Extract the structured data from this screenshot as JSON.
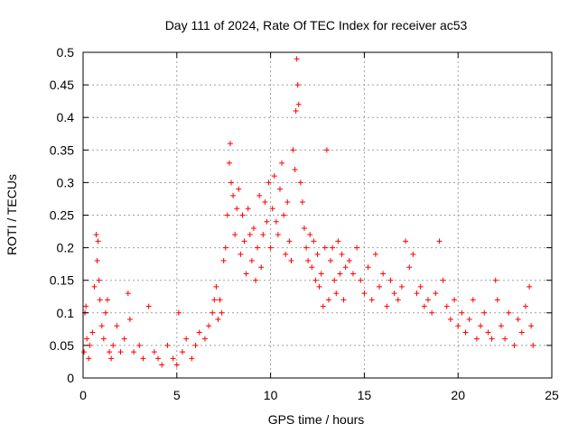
{
  "chart_data": {
    "type": "scatter",
    "title": "Day 111 of 2024, Rate Of TEC Index for receiver ac53",
    "xlabel": "GPS time / hours",
    "ylabel": "ROTI / TECUs",
    "xlim": [
      0,
      25
    ],
    "ylim": [
      0,
      0.5
    ],
    "xticks": [
      0,
      5,
      10,
      15,
      20,
      25
    ],
    "xtick_labels": [
      "0",
      "5",
      "10",
      "15",
      "20",
      "25"
    ],
    "yticks": [
      0,
      0.05,
      0.1,
      0.15,
      0.2,
      0.25,
      0.3,
      0.35,
      0.4,
      0.45,
      0.5
    ],
    "ytick_labels": [
      "0",
      "0.05",
      "0.1",
      "0.15",
      "0.2",
      "0.25",
      "0.3",
      "0.35",
      "0.4",
      "0.45",
      "0.5"
    ],
    "grid": true,
    "marker": "+",
    "color": "#ff0000",
    "series": [
      {
        "x": [
          0.05,
          0.1,
          0.15,
          0.2,
          0.3,
          0.35,
          0.5,
          0.6,
          0.7,
          0.75,
          0.8,
          0.85,
          0.9,
          1.0,
          1.1,
          1.2,
          1.3,
          1.4,
          1.5,
          1.6,
          1.8,
          2.0,
          2.2,
          2.4,
          2.5,
          2.7,
          3.0,
          3.2,
          3.5,
          3.8,
          4.0,
          4.2,
          4.5,
          4.8,
          5.0,
          5.1,
          5.3,
          5.5,
          5.8,
          6.0,
          6.2,
          6.5,
          6.7,
          6.9,
          7.0,
          7.1,
          7.2,
          7.3,
          7.4,
          7.5,
          7.6,
          7.7,
          7.8,
          7.85,
          7.9,
          8.0,
          8.1,
          8.2,
          8.3,
          8.4,
          8.5,
          8.6,
          8.7,
          8.8,
          8.9,
          9.0,
          9.1,
          9.2,
          9.3,
          9.4,
          9.5,
          9.6,
          9.7,
          9.8,
          9.9,
          10.0,
          10.1,
          10.2,
          10.3,
          10.4,
          10.5,
          10.6,
          10.7,
          10.8,
          10.9,
          11.0,
          11.1,
          11.2,
          11.3,
          11.35,
          11.4,
          11.45,
          11.5,
          11.6,
          11.7,
          11.8,
          11.9,
          12.0,
          12.1,
          12.2,
          12.3,
          12.4,
          12.5,
          12.6,
          12.7,
          12.8,
          12.9,
          13.0,
          13.1,
          13.2,
          13.3,
          13.4,
          13.5,
          13.6,
          13.7,
          13.8,
          13.9,
          14.0,
          14.2,
          14.4,
          14.6,
          14.8,
          15.0,
          15.2,
          15.4,
          15.6,
          15.8,
          16.0,
          16.2,
          16.4,
          16.6,
          16.8,
          17.0,
          17.2,
          17.4,
          17.6,
          17.8,
          18.0,
          18.2,
          18.4,
          18.6,
          18.8,
          19.0,
          19.2,
          19.4,
          19.6,
          19.8,
          20.0,
          20.2,
          20.4,
          20.6,
          20.8,
          21.0,
          21.2,
          21.4,
          21.6,
          21.8,
          22.0,
          22.1,
          22.3,
          22.5,
          22.7,
          23.0,
          23.2,
          23.4,
          23.6,
          23.8,
          23.9,
          24.0
        ],
        "y": [
          0.04,
          0.1,
          0.11,
          0.06,
          0.03,
          0.05,
          0.07,
          0.14,
          0.22,
          0.18,
          0.21,
          0.15,
          0.12,
          0.08,
          0.06,
          0.1,
          0.12,
          0.04,
          0.03,
          0.05,
          0.08,
          0.04,
          0.06,
          0.13,
          0.09,
          0.04,
          0.05,
          0.03,
          0.11,
          0.04,
          0.03,
          0.02,
          0.05,
          0.03,
          0.02,
          0.1,
          0.04,
          0.06,
          0.03,
          0.05,
          0.07,
          0.06,
          0.08,
          0.1,
          0.12,
          0.14,
          0.09,
          0.12,
          0.1,
          0.18,
          0.2,
          0.25,
          0.33,
          0.36,
          0.3,
          0.28,
          0.22,
          0.26,
          0.29,
          0.19,
          0.25,
          0.21,
          0.16,
          0.26,
          0.22,
          0.18,
          0.23,
          0.15,
          0.2,
          0.28,
          0.17,
          0.22,
          0.27,
          0.24,
          0.3,
          0.2,
          0.26,
          0.31,
          0.24,
          0.22,
          0.29,
          0.33,
          0.25,
          0.19,
          0.27,
          0.21,
          0.18,
          0.35,
          0.32,
          0.41,
          0.49,
          0.45,
          0.42,
          0.3,
          0.27,
          0.23,
          0.2,
          0.18,
          0.22,
          0.17,
          0.21,
          0.15,
          0.19,
          0.14,
          0.16,
          0.11,
          0.2,
          0.35,
          0.12,
          0.18,
          0.2,
          0.15,
          0.13,
          0.21,
          0.16,
          0.19,
          0.12,
          0.17,
          0.18,
          0.16,
          0.2,
          0.15,
          0.13,
          0.17,
          0.12,
          0.19,
          0.14,
          0.16,
          0.11,
          0.15,
          0.13,
          0.12,
          0.14,
          0.21,
          0.17,
          0.19,
          0.13,
          0.14,
          0.11,
          0.12,
          0.1,
          0.13,
          0.21,
          0.15,
          0.11,
          0.09,
          0.12,
          0.08,
          0.1,
          0.07,
          0.09,
          0.12,
          0.06,
          0.08,
          0.1,
          0.07,
          0.06,
          0.15,
          0.12,
          0.08,
          0.06,
          0.1,
          0.05,
          0.09,
          0.07,
          0.11,
          0.14,
          0.08,
          0.05
        ]
      }
    ]
  }
}
